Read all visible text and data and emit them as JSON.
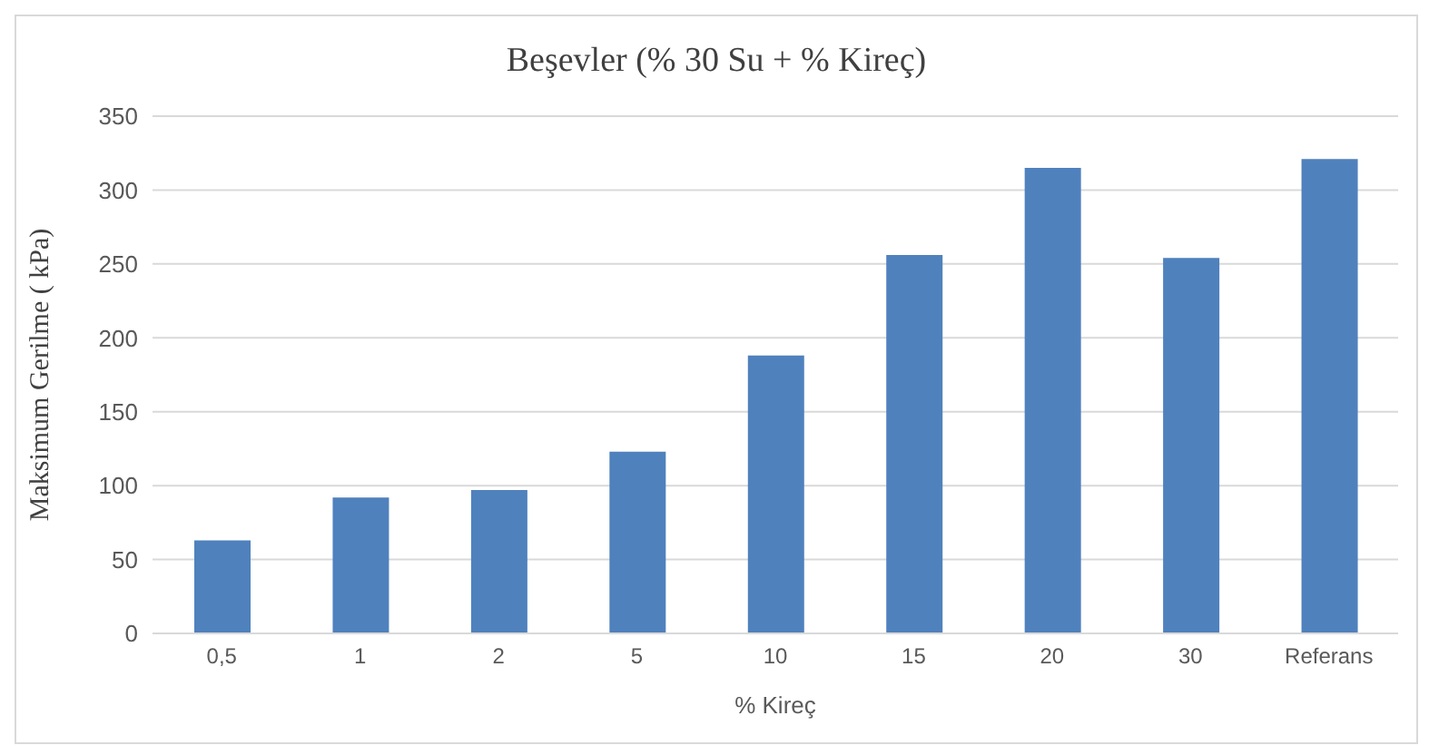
{
  "chart_data": {
    "type": "bar",
    "title": "Beşevler (% 30 Su + % Kireç)",
    "xlabel": "% Kireç",
    "ylabel": "Maksimum Gerilme ( kPa)",
    "categories": [
      "0,5",
      "1",
      "2",
      "5",
      "10",
      "15",
      "20",
      "30",
      "Referans"
    ],
    "values": [
      63,
      92,
      97,
      123,
      188,
      256,
      315,
      254,
      321
    ],
    "color": "#4f81bd",
    "ylim": [
      0,
      350
    ],
    "yticks": [
      0,
      50,
      100,
      150,
      200,
      250,
      300,
      350
    ],
    "grid": "y"
  }
}
